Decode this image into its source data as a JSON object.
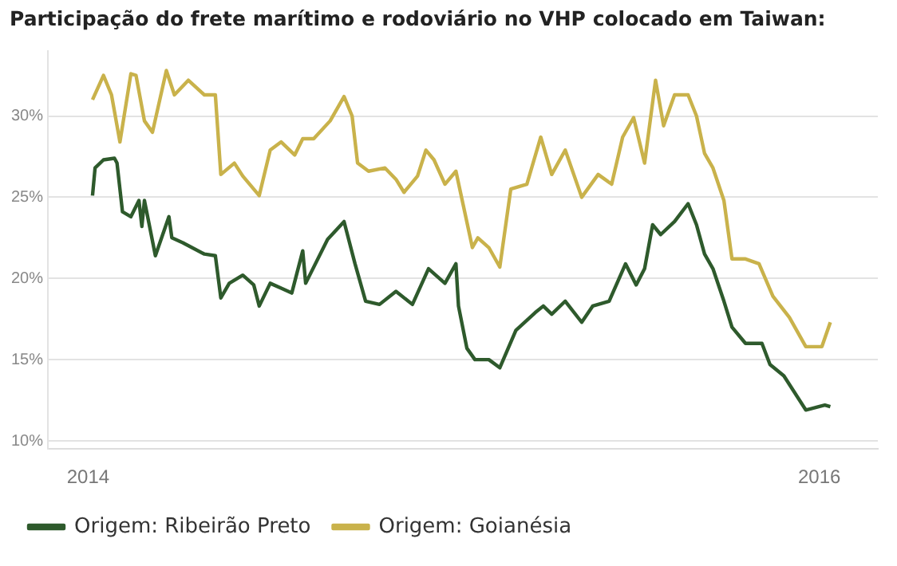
{
  "chart_data": {
    "type": "line",
    "title": "Participação do frete marítimo e rodoviário no VHP colocado em Taiwan:",
    "xlim": [
      2013.89,
      2016.16
    ],
    "xticks": [
      2014,
      2016
    ],
    "ylim": [
      9.5,
      34
    ],
    "yticks": [
      {
        "value": 10,
        "label": "10%"
      },
      {
        "value": 15,
        "label": "15%"
      },
      {
        "value": 20,
        "label": "20%"
      },
      {
        "value": 25,
        "label": "25%"
      },
      {
        "value": 30,
        "label": "30%"
      }
    ],
    "grid": "y",
    "legend": "bottom",
    "marker": "none",
    "line_style": "solid",
    "series": [
      {
        "name": "Origem: Ribeirão Preto",
        "color": "#2e5a2c",
        "x": [
          2014.012,
          2014.019,
          2014.042,
          2014.072,
          2014.079,
          2014.094,
          2014.117,
          2014.139,
          2014.147,
          2014.154,
          2014.184,
          2014.221,
          2014.229,
          2014.259,
          2014.318,
          2014.348,
          2014.363,
          2014.386,
          2014.423,
          2014.453,
          2014.468,
          2014.498,
          2014.528,
          2014.557,
          2014.587,
          2014.595,
          2014.655,
          2014.7,
          2014.73,
          2014.759,
          2014.797,
          2014.842,
          2014.887,
          2014.931,
          2014.976,
          2015.006,
          2015.013,
          2015.036,
          2015.058,
          2015.096,
          2015.126,
          2015.17,
          2015.223,
          2015.245,
          2015.268,
          2015.305,
          2015.35,
          2015.38,
          2015.425,
          2015.47,
          2015.499,
          2015.522,
          2015.544,
          2015.566,
          2015.604,
          2015.641,
          2015.664,
          2015.686,
          2015.709,
          2015.739,
          2015.761,
          2015.798,
          2015.843,
          2015.865,
          2015.903,
          2015.963,
          2016.015,
          2016.03
        ],
        "values": [
          25.1,
          26.8,
          27.3,
          27.4,
          27.1,
          24.1,
          23.8,
          24.8,
          23.2,
          24.8,
          21.4,
          23.8,
          22.5,
          22.2,
          21.5,
          21.4,
          18.8,
          19.7,
          20.2,
          19.6,
          18.3,
          19.7,
          19.4,
          19.1,
          21.7,
          19.7,
          22.4,
          23.5,
          20.9,
          18.6,
          18.4,
          19.2,
          18.4,
          20.6,
          19.7,
          20.9,
          18.3,
          15.7,
          15.0,
          15.0,
          14.5,
          16.8,
          17.9,
          18.3,
          17.8,
          18.6,
          17.3,
          18.3,
          18.6,
          20.9,
          19.6,
          20.6,
          23.3,
          22.7,
          23.5,
          24.6,
          23.3,
          21.5,
          20.6,
          18.6,
          17.0,
          16.0,
          16.0,
          14.7,
          14.0,
          11.9,
          12.2,
          12.1
        ]
      },
      {
        "name": "Origem: Goianésia",
        "color": "#c9b24b",
        "x": [
          2014.012,
          2014.042,
          2014.064,
          2014.087,
          2014.117,
          2014.131,
          2014.154,
          2014.176,
          2014.214,
          2014.236,
          2014.274,
          2014.318,
          2014.348,
          2014.363,
          2014.4,
          2014.423,
          2014.468,
          2014.498,
          2014.528,
          2014.565,
          2014.587,
          2014.617,
          2014.662,
          2014.7,
          2014.722,
          2014.737,
          2014.767,
          2014.812,
          2014.842,
          2014.864,
          2014.901,
          2014.924,
          2014.946,
          2014.976,
          2015.006,
          2015.051,
          2015.066,
          2015.096,
          2015.126,
          2015.156,
          2015.2,
          2015.238,
          2015.268,
          2015.305,
          2015.35,
          2015.395,
          2015.432,
          2015.462,
          2015.492,
          2015.522,
          2015.552,
          2015.574,
          2015.604,
          2015.641,
          2015.664,
          2015.686,
          2015.709,
          2015.739,
          2015.761,
          2015.798,
          2015.835,
          2015.873,
          2015.918,
          2015.963,
          2016.007,
          2016.03
        ],
        "values": [
          31.0,
          32.5,
          31.3,
          28.4,
          32.6,
          32.5,
          29.7,
          29.0,
          32.8,
          31.3,
          32.2,
          31.3,
          31.3,
          26.4,
          27.1,
          26.3,
          25.1,
          27.9,
          28.4,
          27.6,
          28.6,
          28.6,
          29.7,
          31.2,
          30.0,
          27.1,
          26.6,
          26.8,
          26.1,
          25.3,
          26.3,
          27.9,
          27.3,
          25.8,
          26.6,
          21.9,
          22.5,
          21.9,
          20.7,
          25.5,
          25.8,
          28.7,
          26.4,
          27.9,
          25.0,
          26.4,
          25.8,
          28.7,
          29.9,
          27.1,
          32.2,
          29.4,
          31.3,
          31.3,
          30.0,
          27.7,
          26.8,
          24.8,
          21.2,
          21.2,
          20.9,
          18.9,
          17.6,
          15.8,
          15.8,
          17.3
        ]
      }
    ]
  }
}
